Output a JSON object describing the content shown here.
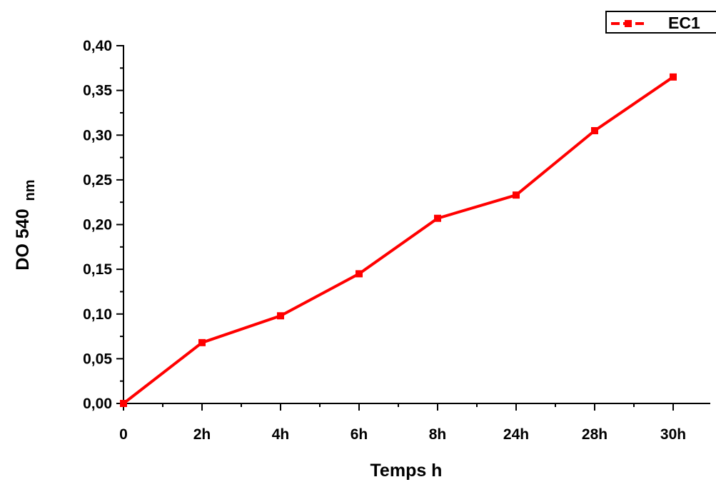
{
  "chart_data": {
    "type": "line",
    "categories": [
      "0",
      "2h",
      "4h",
      "6h",
      "8h",
      "24h",
      "28h",
      "30h"
    ],
    "series": [
      {
        "name": "EC1",
        "color": "#ff0000",
        "values": [
          0.0,
          0.068,
          0.098,
          0.145,
          0.207,
          0.233,
          0.305,
          0.365
        ]
      }
    ],
    "xlabel": "Temps h",
    "ylabel": {
      "main": "DO 540",
      "subscript": "nm"
    },
    "ylim": [
      0,
      0.4
    ],
    "yticks": [
      "0,00",
      "0,05",
      "0,10",
      "0,15",
      "0,20",
      "0,25",
      "0,30",
      "0,35",
      "0,40"
    ],
    "grid": false,
    "legend": {
      "position": "top-right",
      "entries": [
        "EC1"
      ]
    }
  }
}
